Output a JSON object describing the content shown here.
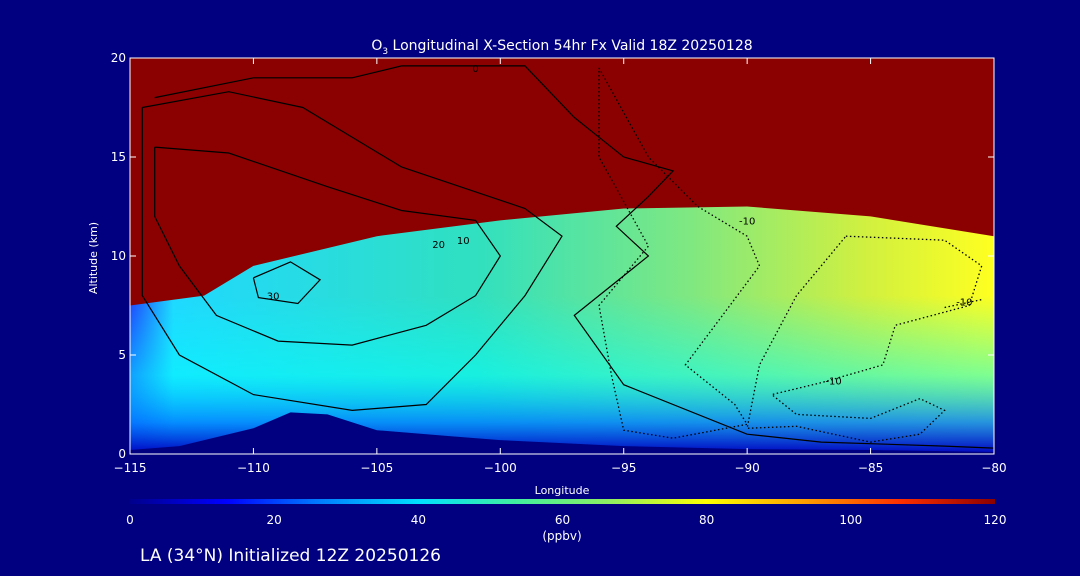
{
  "chart_data": {
    "type": "heatmap",
    "title_prefix": "O",
    "title_subscript": "3",
    "title_suffix": " Longitudinal X-Section 54hr  Fx Valid 18Z 20250128",
    "xlabel": "Longitude",
    "ylabel": "Altitude (km)",
    "xlim": [
      -115,
      -80
    ],
    "ylim": [
      0,
      20
    ],
    "x_ticks": [
      -115,
      -110,
      -105,
      -100,
      -95,
      -90,
      -85,
      -80
    ],
    "x_tick_labels": [
      "−115",
      "−110",
      "−105",
      "−100",
      "−95",
      "−90",
      "−85",
      "−80"
    ],
    "y_ticks": [
      0,
      5,
      10,
      15,
      20
    ],
    "y_tick_labels": [
      "0",
      "5",
      "10",
      "15",
      "20"
    ],
    "colorbar": {
      "min": 0,
      "max": 120,
      "ticks": [
        0,
        20,
        40,
        60,
        80,
        100,
        120
      ],
      "tick_labels": [
        "0",
        "20",
        "40",
        "60",
        "80",
        "100",
        "120"
      ],
      "unit": "(ppbv)",
      "colors": [
        "#00008c",
        "#0000ff",
        "#0080ff",
        "#00e0ff",
        "#40f0a0",
        "#90f060",
        "#ffff00",
        "#ffa000",
        "#ff3000",
        "#8b0000"
      ]
    },
    "tropopause_km": [
      [
        -115,
        7.5
      ],
      [
        -112,
        8.0
      ],
      [
        -110,
        9.5
      ],
      [
        -105,
        11.0
      ],
      [
        -100,
        11.8
      ],
      [
        -95,
        12.4
      ],
      [
        -90,
        12.5
      ],
      [
        -85,
        12.0
      ],
      [
        -80,
        11.0
      ]
    ],
    "terrain_km": [
      [
        -115,
        0.2
      ],
      [
        -113,
        0.4
      ],
      [
        -110,
        1.3
      ],
      [
        -108.5,
        2.1
      ],
      [
        -107,
        2.0
      ],
      [
        -105,
        1.2
      ],
      [
        -102,
        0.9
      ],
      [
        -100,
        0.7
      ],
      [
        -95,
        0.4
      ],
      [
        -90,
        0.25
      ],
      [
        -85,
        0.2
      ],
      [
        -80,
        0.1
      ]
    ],
    "contours": [
      {
        "level": 30,
        "style": "solid",
        "label": "30",
        "label_at": [
          -109.2,
          7.8
        ],
        "points": [
          [
            -110,
            8.9
          ],
          [
            -108.5,
            9.7
          ],
          [
            -107.3,
            8.8
          ],
          [
            -108.2,
            7.6
          ],
          [
            -109.8,
            7.9
          ],
          [
            -110,
            8.9
          ]
        ]
      },
      {
        "level": 20,
        "style": "solid",
        "label": "20",
        "label_at": [
          -102.5,
          10.4
        ],
        "points": [
          [
            -114,
            15.5
          ],
          [
            -111,
            15.2
          ],
          [
            -107,
            13.5
          ],
          [
            -104,
            12.3
          ],
          [
            -101,
            11.8
          ],
          [
            -100,
            10.0
          ],
          [
            -101,
            8.0
          ],
          [
            -103,
            6.5
          ],
          [
            -106,
            5.5
          ],
          [
            -109,
            5.7
          ],
          [
            -111.5,
            7.0
          ],
          [
            -113,
            9.5
          ],
          [
            -114,
            12.0
          ],
          [
            -114,
            15.5
          ]
        ]
      },
      {
        "level": 10,
        "style": "solid",
        "label": "10",
        "label_at": [
          -101.5,
          10.6
        ],
        "points": [
          [
            -114.5,
            17.5
          ],
          [
            -111,
            18.3
          ],
          [
            -108,
            17.5
          ],
          [
            -104,
            14.5
          ],
          [
            -99,
            12.4
          ],
          [
            -97.5,
            11.0
          ],
          [
            -99,
            8.0
          ],
          [
            -101,
            5.0
          ],
          [
            -103,
            2.5
          ],
          [
            -106,
            2.2
          ],
          [
            -110,
            3.0
          ],
          [
            -113,
            5.0
          ],
          [
            -114.5,
            8.0
          ],
          [
            -114.5,
            17.5
          ]
        ]
      },
      {
        "level": 0,
        "style": "solid",
        "label": "0",
        "label_at": [
          -101,
          19.3
        ],
        "points": [
          [
            -114,
            18.0
          ],
          [
            -110,
            19.0
          ],
          [
            -106,
            19.0
          ],
          [
            -104,
            19.6
          ],
          [
            -99,
            19.6
          ],
          [
            -97,
            17.0
          ],
          [
            -95,
            15.0
          ],
          [
            -93,
            14.3
          ],
          [
            -94,
            13.0
          ],
          [
            -95.3,
            11.5
          ],
          [
            -94,
            10.0
          ],
          [
            -97,
            7.0
          ],
          [
            -95,
            3.5
          ],
          [
            -90,
            1.0
          ],
          [
            -87,
            0.6
          ],
          [
            -82,
            0.4
          ],
          [
            -80,
            0.3
          ]
        ]
      },
      {
        "level": -10,
        "style": "dotted",
        "label": "-10",
        "label_at": [
          -90,
          11.6
        ],
        "points": [
          [
            -96,
            19.5
          ],
          [
            -94,
            15.0
          ],
          [
            -92,
            12.5
          ],
          [
            -90,
            11.0
          ],
          [
            -89.5,
            9.5
          ],
          [
            -91,
            7.0
          ],
          [
            -92.5,
            4.5
          ],
          [
            -90.5,
            2.5
          ],
          [
            -90,
            1.5
          ],
          [
            -93,
            0.8
          ],
          [
            -95,
            1.2
          ],
          [
            -95.5,
            4.0
          ],
          [
            -96,
            7.5
          ],
          [
            -94,
            10.5
          ],
          [
            -96,
            15.0
          ],
          [
            -96,
            19.5
          ]
        ]
      },
      {
        "level": -10,
        "style": "dotted",
        "label": "-10",
        "label_at": [
          -86.5,
          3.5
        ],
        "points": [
          [
            -86,
            11.0
          ],
          [
            -82,
            10.8
          ],
          [
            -80.5,
            9.5
          ],
          [
            -81,
            7.5
          ],
          [
            -84,
            6.5
          ],
          [
            -84.5,
            4.5
          ],
          [
            -87,
            3.6
          ],
          [
            -89,
            3.0
          ],
          [
            -88,
            2.0
          ],
          [
            -85,
            1.8
          ],
          [
            -83,
            2.8
          ],
          [
            -82,
            2.2
          ],
          [
            -83,
            1.0
          ],
          [
            -85,
            0.6
          ],
          [
            -88,
            1.4
          ],
          [
            -90,
            1.3
          ],
          [
            -89.5,
            4.5
          ],
          [
            -88,
            8.0
          ],
          [
            -86,
            11.0
          ]
        ]
      },
      {
        "level": -10,
        "style": "dotted",
        "label": "-10",
        "label_at": [
          -81.2,
          7.5
        ],
        "points": [
          [
            -82,
            7.4
          ],
          [
            -80.5,
            7.8
          ]
        ]
      }
    ]
  },
  "footer": {
    "init_label": "LA (34°N) Initialized 12Z 20250126"
  }
}
